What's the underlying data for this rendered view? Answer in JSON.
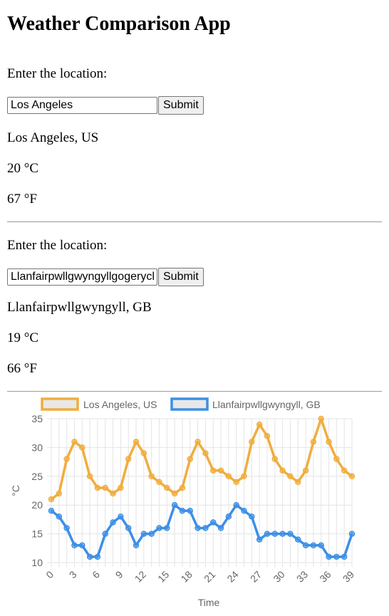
{
  "app": {
    "title": "Weather Comparison App"
  },
  "locations": [
    {
      "prompt": "Enter the location:",
      "input_value": "Los Angeles",
      "submit_label": "Submit",
      "result_name": "Los Angeles, US",
      "temp_c": "20 °C",
      "temp_f": "67 °F"
    },
    {
      "prompt": "Enter the location:",
      "input_value": "Llanfairpwllgwyngyllgogerychwyrndrobwllllantysiliogogogoch",
      "submit_label": "Submit",
      "result_name": "Llanfairpwllgwyngyll, GB",
      "temp_c": "19 °C",
      "temp_f": "66 °F"
    }
  ],
  "chart_data": {
    "type": "line",
    "xlabel": "Time",
    "ylabel": "°C",
    "ylim": [
      10,
      35
    ],
    "yticks": [
      10,
      15,
      20,
      25,
      30,
      35
    ],
    "xticks": [
      0,
      3,
      6,
      9,
      12,
      15,
      18,
      21,
      24,
      27,
      30,
      33,
      36,
      39
    ],
    "x": [
      0,
      1,
      2,
      3,
      4,
      5,
      6,
      7,
      8,
      9,
      10,
      11,
      12,
      13,
      14,
      15,
      16,
      17,
      18,
      19,
      20,
      21,
      22,
      23,
      24,
      25,
      26,
      27,
      28,
      29,
      30,
      31,
      32,
      33,
      34,
      35,
      36,
      37,
      38,
      39
    ],
    "grid": true,
    "legend_position": "top",
    "series": [
      {
        "name": "Los Angeles, US",
        "color": "#f0ad3e",
        "values": [
          21,
          22,
          28,
          31,
          30,
          25,
          23,
          23,
          22,
          23,
          28,
          31,
          29,
          25,
          24,
          23,
          22,
          23,
          28,
          31,
          29,
          26,
          26,
          25,
          24,
          25,
          31,
          34,
          32,
          28,
          26,
          25,
          24,
          26,
          31,
          35,
          31,
          28,
          26,
          25
        ]
      },
      {
        "name": "Llanfairpwllgwyngyll, GB",
        "color": "#3d8fe6",
        "values": [
          19,
          18,
          16,
          13,
          13,
          11,
          11,
          15,
          17,
          18,
          16,
          13,
          15,
          15,
          16,
          16,
          20,
          19,
          19,
          16,
          16,
          17,
          16,
          18,
          20,
          19,
          18,
          14,
          15,
          15,
          15,
          15,
          14,
          13,
          13,
          13,
          11,
          11,
          11,
          15
        ]
      }
    ]
  }
}
